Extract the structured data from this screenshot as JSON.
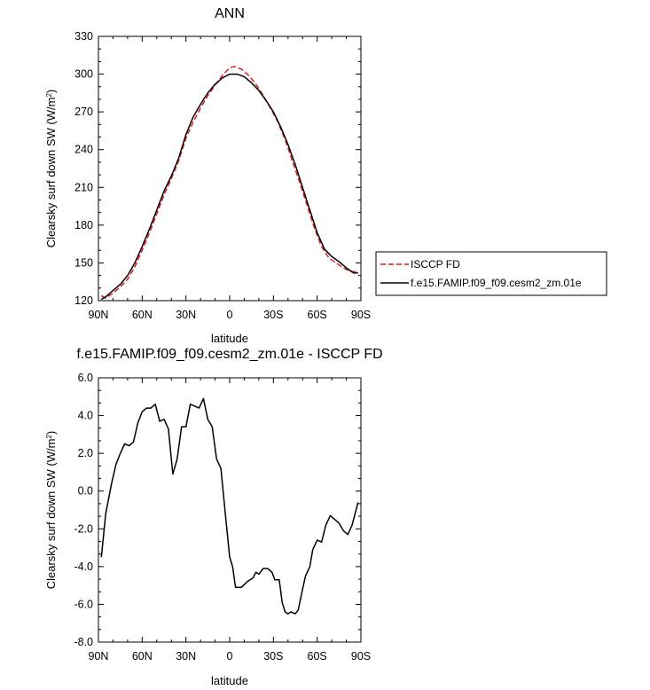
{
  "chart_data": [
    {
      "type": "line",
      "title": "ANN",
      "xlabel": "latitude",
      "ylabel": "Clearsky surf down SW (W/m",
      "ylabel_sup": "2",
      "ylabel_close": ")",
      "x_ticks": [
        "90N",
        "60N",
        "30N",
        "0",
        "30S",
        "60S",
        "90S"
      ],
      "y_ticks": [
        "120",
        "150",
        "180",
        "210",
        "240",
        "270",
        "300",
        "330"
      ],
      "xlim": [
        -90,
        90
      ],
      "ylim": [
        120,
        330
      ],
      "legend_position": "right",
      "series": [
        {
          "name": "ISCCP FD",
          "color": "#e41a1c",
          "dash": "dashed",
          "points": [
            [
              -88,
              124
            ],
            [
              -85,
              122
            ],
            [
              -80,
              126
            ],
            [
              -75,
              131
            ],
            [
              -70,
              137
            ],
            [
              -65,
              147
            ],
            [
              -60,
              160
            ],
            [
              -55,
              174
            ],
            [
              -50,
              189
            ],
            [
              -45,
              204
            ],
            [
              -40,
              217
            ],
            [
              -35,
              231
            ],
            [
              -30,
              249
            ],
            [
              -25,
              262
            ],
            [
              -20,
              273
            ],
            [
              -15,
              283
            ],
            [
              -10,
              291
            ],
            [
              -5,
              299
            ],
            [
              0,
              305
            ],
            [
              3,
              306
            ],
            [
              8,
              304
            ],
            [
              13,
              299
            ],
            [
              18,
              292
            ],
            [
              23,
              283
            ],
            [
              28,
              273
            ],
            [
              33,
              262
            ],
            [
              38,
              248
            ],
            [
              43,
              231
            ],
            [
              48,
              214
            ],
            [
              53,
              196
            ],
            [
              58,
              178
            ],
            [
              63,
              163
            ],
            [
              68,
              154
            ],
            [
              73,
              150
            ],
            [
              78,
              146
            ],
            [
              83,
              143
            ],
            [
              88,
              143
            ]
          ]
        },
        {
          "name": "f.e15.FAMIP.f09_f09.cesm2_zm.01e",
          "color": "#000000",
          "dash": "solid",
          "points": [
            [
              -88,
              121
            ],
            [
              -85,
              123
            ],
            [
              -80,
              128
            ],
            [
              -75,
              133
            ],
            [
              -70,
              140
            ],
            [
              -65,
              150
            ],
            [
              -60,
              163
            ],
            [
              -55,
              177
            ],
            [
              -50,
              192
            ],
            [
              -45,
              207
            ],
            [
              -40,
              219
            ],
            [
              -35,
              233
            ],
            [
              -30,
              252
            ],
            [
              -25,
              266
            ],
            [
              -20,
              276
            ],
            [
              -15,
              285
            ],
            [
              -10,
              292
            ],
            [
              -5,
              297
            ],
            [
              0,
              300
            ],
            [
              5,
              300
            ],
            [
              10,
              298
            ],
            [
              15,
              293
            ],
            [
              20,
              287
            ],
            [
              25,
              279
            ],
            [
              30,
              270
            ],
            [
              35,
              258
            ],
            [
              40,
              244
            ],
            [
              45,
              228
            ],
            [
              50,
              210
            ],
            [
              55,
              192
            ],
            [
              60,
              174
            ],
            [
              65,
              161
            ],
            [
              70,
              155
            ],
            [
              75,
              151
            ],
            [
              80,
              146
            ],
            [
              85,
              142
            ],
            [
              88,
              142
            ]
          ]
        }
      ]
    },
    {
      "type": "line",
      "title": "f.e15.FAMIP.f09_f09.cesm2_zm.01e - ISCCP FD",
      "xlabel": "latitude",
      "ylabel": "Clearsky surf down SW (W/m",
      "ylabel_sup": "2",
      "ylabel_close": ")",
      "x_ticks": [
        "90N",
        "60N",
        "30N",
        "0",
        "30S",
        "60S",
        "90S"
      ],
      "y_ticks": [
        "-8.0",
        "-6.0",
        "-4.0",
        "-2.0",
        "0.0",
        "2.0",
        "4.0",
        "6.0"
      ],
      "xlim": [
        -90,
        90
      ],
      "ylim": [
        -8,
        6
      ],
      "series": [
        {
          "color": "#000000",
          "points": [
            [
              -88,
              -3.5
            ],
            [
              -85,
              -1.2
            ],
            [
              -81,
              0.4
            ],
            [
              -78,
              1.4
            ],
            [
              -75,
              2.0
            ],
            [
              -72,
              2.5
            ],
            [
              -69,
              2.4
            ],
            [
              -66,
              2.6
            ],
            [
              -63,
              3.6
            ],
            [
              -60,
              4.2
            ],
            [
              -57,
              4.4
            ],
            [
              -54,
              4.4
            ],
            [
              -51,
              4.6
            ],
            [
              -48,
              3.7
            ],
            [
              -45,
              3.8
            ],
            [
              -42,
              3.3
            ],
            [
              -39,
              0.9
            ],
            [
              -36,
              1.7
            ],
            [
              -33,
              3.4
            ],
            [
              -30,
              3.4
            ],
            [
              -27,
              4.6
            ],
            [
              -24,
              4.5
            ],
            [
              -21,
              4.4
            ],
            [
              -18,
              4.9
            ],
            [
              -15,
              3.8
            ],
            [
              -12,
              3.4
            ],
            [
              -9,
              1.7
            ],
            [
              -6,
              1.2
            ],
            [
              -3,
              -1.2
            ],
            [
              0,
              -3.5
            ],
            [
              2,
              -4.0
            ],
            [
              4,
              -5.1
            ],
            [
              8,
              -5.1
            ],
            [
              12,
              -4.8
            ],
            [
              16,
              -4.6
            ],
            [
              18,
              -4.3
            ],
            [
              20,
              -4.4
            ],
            [
              23,
              -4.1
            ],
            [
              26,
              -4.1
            ],
            [
              29,
              -4.3
            ],
            [
              31,
              -4.7
            ],
            [
              34,
              -4.7
            ],
            [
              36,
              -5.9
            ],
            [
              38,
              -6.4
            ],
            [
              40,
              -6.5
            ],
            [
              42,
              -6.4
            ],
            [
              45,
              -6.5
            ],
            [
              47,
              -6.3
            ],
            [
              50,
              -5.2
            ],
            [
              52,
              -4.5
            ],
            [
              55,
              -4.0
            ],
            [
              57,
              -3.1
            ],
            [
              60,
              -2.6
            ],
            [
              63,
              -2.7
            ],
            [
              66,
              -1.8
            ],
            [
              69,
              -1.3
            ],
            [
              72,
              -1.5
            ],
            [
              75,
              -1.7
            ],
            [
              78,
              -2.1
            ],
            [
              81,
              -2.3
            ],
            [
              84,
              -1.8
            ],
            [
              88,
              -0.6
            ]
          ]
        }
      ]
    }
  ]
}
